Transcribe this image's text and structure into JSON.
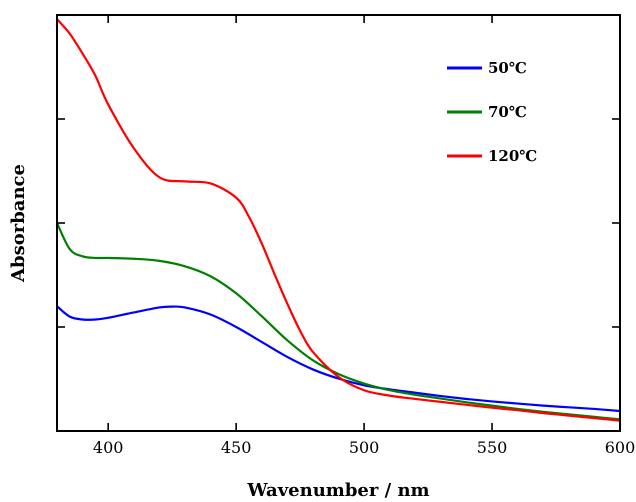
{
  "chart_data": {
    "type": "line",
    "title": "",
    "xlabel": "Wavenumber / nm",
    "ylabel": "Absorbance",
    "xlim": [
      380,
      600
    ],
    "ylim": [
      0,
      1
    ],
    "x_ticks": [
      400,
      450,
      500,
      550,
      600
    ],
    "x_tick_labels": [
      "400",
      "450",
      "500",
      "550",
      "600"
    ],
    "y_tick_labels_shown": false,
    "grid": false,
    "legend_position": "top-right",
    "series": [
      {
        "name": "50℃",
        "color": "#0000ff",
        "x": [
          380,
          385,
          390,
          395,
          400,
          410,
          420,
          425,
          430,
          440,
          450,
          460,
          470,
          480,
          490,
          500,
          510,
          520,
          530,
          540,
          550,
          560,
          570,
          580,
          590,
          600
        ],
        "y": [
          0.3,
          0.275,
          0.268,
          0.268,
          0.272,
          0.285,
          0.297,
          0.299,
          0.297,
          0.28,
          0.25,
          0.214,
          0.178,
          0.148,
          0.126,
          0.11,
          0.1,
          0.092,
          0.084,
          0.077,
          0.071,
          0.066,
          0.061,
          0.057,
          0.053,
          0.048
        ]
      },
      {
        "name": "70℃",
        "color": "#008000",
        "x": [
          380,
          385,
          390,
          395,
          400,
          410,
          420,
          430,
          440,
          450,
          460,
          470,
          480,
          490,
          500,
          510,
          520,
          530,
          540,
          550,
          560,
          570,
          580,
          590,
          600
        ],
        "y": [
          0.5,
          0.437,
          0.42,
          0.416,
          0.416,
          0.414,
          0.409,
          0.396,
          0.372,
          0.331,
          0.276,
          0.218,
          0.17,
          0.137,
          0.114,
          0.098,
          0.087,
          0.078,
          0.069,
          0.061,
          0.053,
          0.046,
          0.04,
          0.034,
          0.028
        ]
      },
      {
        "name": "120℃",
        "color": "#ff0000",
        "x": [
          380,
          385,
          390,
          395,
          400,
          410,
          420,
          430,
          440,
          450,
          455,
          460,
          465,
          470,
          475,
          480,
          490,
          500,
          510,
          520,
          530,
          540,
          550,
          560,
          570,
          580,
          590,
          600
        ],
        "y": [
          0.99,
          0.955,
          0.907,
          0.854,
          0.785,
          0.68,
          0.61,
          0.6,
          0.595,
          0.561,
          0.515,
          0.451,
          0.377,
          0.306,
          0.241,
          0.19,
          0.13,
          0.098,
          0.085,
          0.077,
          0.07,
          0.063,
          0.056,
          0.05,
          0.043,
          0.037,
          0.031,
          0.025
        ]
      }
    ]
  }
}
